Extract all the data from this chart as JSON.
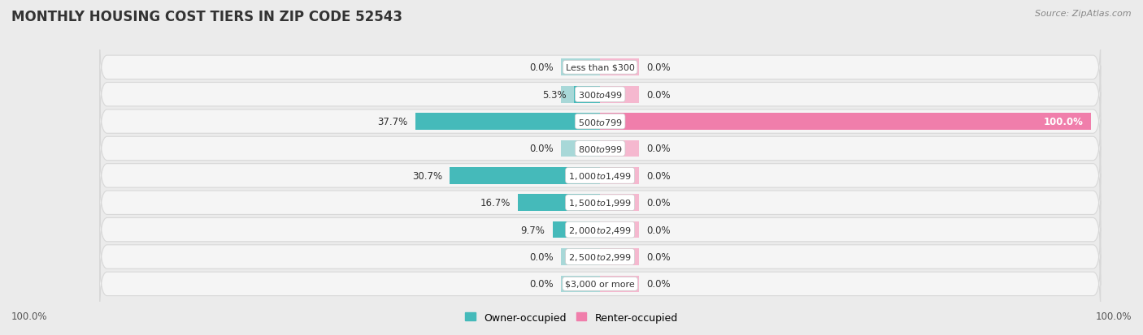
{
  "title": "MONTHLY HOUSING COST TIERS IN ZIP CODE 52543",
  "source": "Source: ZipAtlas.com",
  "categories": [
    "Less than $300",
    "$300 to $499",
    "$500 to $799",
    "$800 to $999",
    "$1,000 to $1,499",
    "$1,500 to $1,999",
    "$2,000 to $2,499",
    "$2,500 to $2,999",
    "$3,000 or more"
  ],
  "owner_values": [
    0.0,
    5.3,
    37.7,
    0.0,
    30.7,
    16.7,
    9.7,
    0.0,
    0.0
  ],
  "renter_values": [
    0.0,
    0.0,
    100.0,
    0.0,
    0.0,
    0.0,
    0.0,
    0.0,
    0.0
  ],
  "owner_color": "#45BABA",
  "renter_color": "#F07EAB",
  "owner_color_light": "#A8D8D8",
  "renter_color_light": "#F5B8CF",
  "bg_color": "#EBEBEB",
  "row_bg_color": "#F5F5F5",
  "row_border_color": "#D8D8D8",
  "max_value": 100.0,
  "legend_owner": "Owner-occupied",
  "legend_renter": "Renter-occupied",
  "axis_left_label": "100.0%",
  "axis_right_label": "100.0%",
  "title_fontsize": 12,
  "label_fontsize": 8.5,
  "category_fontsize": 8,
  "source_fontsize": 8
}
